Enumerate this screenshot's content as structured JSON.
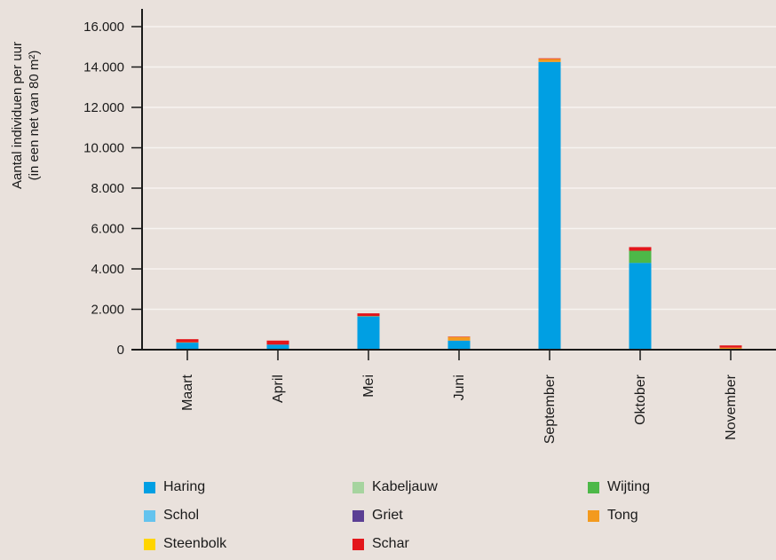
{
  "chart_data": {
    "type": "bar",
    "stacked": true,
    "ylabel_line1": "Aantal individuen per uur",
    "ylabel_line2": "(in een net van 80 m²)",
    "ylim": [
      0,
      16000
    ],
    "yticks": [
      0,
      2000,
      4000,
      6000,
      8000,
      10000,
      12000,
      14000,
      16000
    ],
    "ytick_labels": [
      "0",
      "2.000",
      "4.000",
      "6.000",
      "8.000",
      "10.000",
      "12.000",
      "14.000",
      "16.000"
    ],
    "grid": true,
    "legend_position": "bottom",
    "categories": [
      "Maart",
      "April",
      "Mei",
      "Juni",
      "September",
      "Oktober",
      "November"
    ],
    "series": [
      {
        "name": "Haring",
        "color": "#009fe3",
        "values": [
          350,
          250,
          1650,
          450,
          14250,
          4300,
          30
        ]
      },
      {
        "name": "Kabeljauw",
        "color": "#a6d49f",
        "values": [
          0,
          0,
          0,
          0,
          0,
          0,
          0
        ]
      },
      {
        "name": "Wijting",
        "color": "#4db848",
        "values": [
          0,
          0,
          0,
          0,
          0,
          600,
          0
        ]
      },
      {
        "name": "Schol",
        "color": "#64c3ee",
        "values": [
          0,
          0,
          0,
          0,
          0,
          0,
          0
        ]
      },
      {
        "name": "Griet",
        "color": "#5b3f94",
        "values": [
          0,
          0,
          0,
          0,
          0,
          0,
          0
        ]
      },
      {
        "name": "Tong",
        "color": "#f39a1e",
        "values": [
          20,
          0,
          20,
          180,
          150,
          0,
          70
        ]
      },
      {
        "name": "Steenbolk",
        "color": "#ffd500",
        "values": [
          0,
          0,
          0,
          0,
          0,
          0,
          0
        ]
      },
      {
        "name": "Schar",
        "color": "#e3161b",
        "values": [
          150,
          200,
          130,
          20,
          30,
          180,
          110
        ]
      }
    ]
  }
}
